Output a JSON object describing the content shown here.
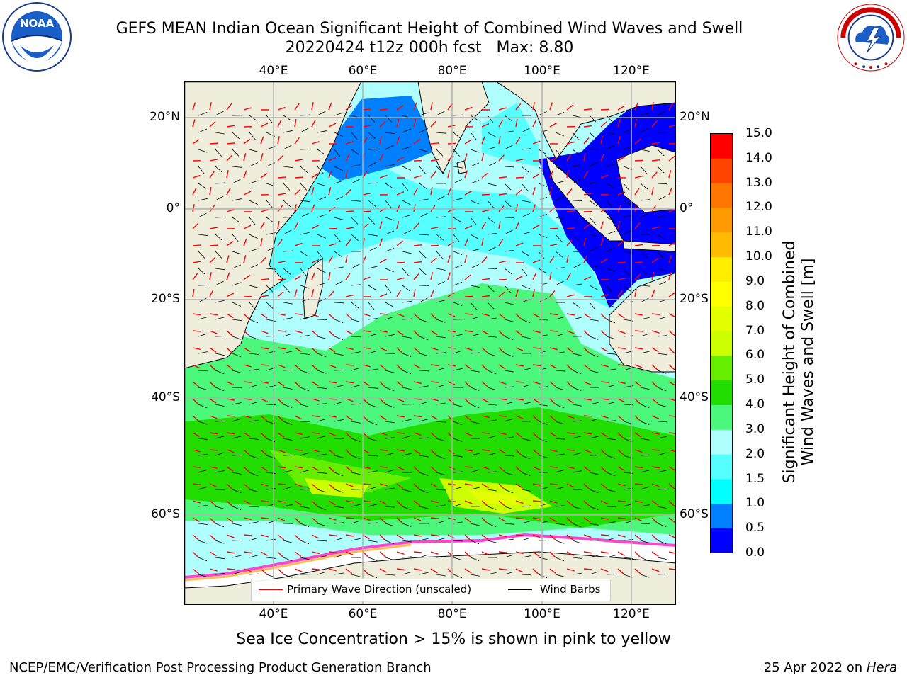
{
  "header": {
    "title_line1": "GEFS MEAN Indian Ocean Significant Height of Combined Wind Waves and Swell",
    "title_line2": "20220424 t12z 000h fcst   Max: 8.80"
  },
  "logos": {
    "left": {
      "name": "noaa-logo",
      "text": "NOAA",
      "ring_text": "NATIONAL OCEANIC AND ATMOSPHERIC ADMINISTRATION • U.S. DEPARTMENT OF COMMERCE"
    },
    "right": {
      "name": "nws-logo",
      "ring_text": "NATIONAL WEATHER SERVICE"
    }
  },
  "map": {
    "lon_ticks": [
      "40°E",
      "60°E",
      "80°E",
      "100°E",
      "120°E"
    ],
    "lat_ticks": [
      "20°N",
      "0°",
      "20°S",
      "40°S",
      "60°S"
    ],
    "lat_ticks_right": [
      "20°N",
      "0°",
      "20°S",
      "40°S",
      "60°S"
    ],
    "lon_range": [
      20,
      130
    ],
    "lat_range": [
      -80,
      27
    ],
    "grid": true,
    "colors": {
      "land": "#efeedc",
      "ocean_1_5": "#7ffeff",
      "ocean_2": "#b0fefe",
      "ocean_3": "#4cfa7c",
      "ocean_4": "#22dd00",
      "ice": "#ffffff",
      "ice_edge": "#ff44cc"
    }
  },
  "legend": {
    "items": [
      {
        "label": "Primary Wave Direction (unscaled)",
        "color": "#ff0000"
      },
      {
        "label": "Wind Barbs",
        "color": "#000000"
      }
    ],
    "placement": "bottom-center"
  },
  "colorbar": {
    "label_line1": "Significant Height of Combined",
    "label_line2": "Wind Waves and Swell [m]",
    "ticks": [
      "15.0",
      "14.0",
      "13.0",
      "12.0",
      "11.0",
      "10.0",
      "9.0",
      "8.0",
      "7.0",
      "6.0",
      "5.0",
      "4.0",
      "3.0",
      "2.0",
      "1.5",
      "1.0",
      "0.5",
      "0.0"
    ],
    "bins": [
      {
        "from": 0.0,
        "to": 0.5,
        "color": "#0000ff"
      },
      {
        "from": 0.5,
        "to": 1.0,
        "color": "#0080ff"
      },
      {
        "from": 1.0,
        "to": 1.5,
        "color": "#00ffff"
      },
      {
        "from": 1.5,
        "to": 2.0,
        "color": "#55ffff"
      },
      {
        "from": 2.0,
        "to": 3.0,
        "color": "#b0ffff"
      },
      {
        "from": 3.0,
        "to": 4.0,
        "color": "#4cf87c"
      },
      {
        "from": 4.0,
        "to": 5.0,
        "color": "#22dd00"
      },
      {
        "from": 5.0,
        "to": 6.0,
        "color": "#66ee00"
      },
      {
        "from": 6.0,
        "to": 7.0,
        "color": "#ccff00"
      },
      {
        "from": 7.0,
        "to": 8.0,
        "color": "#e4ff00"
      },
      {
        "from": 8.0,
        "to": 9.0,
        "color": "#ffff00"
      },
      {
        "from": 9.0,
        "to": 10.0,
        "color": "#ffee00"
      },
      {
        "from": 10.0,
        "to": 11.0,
        "color": "#ffbb00"
      },
      {
        "from": 11.0,
        "to": 12.0,
        "color": "#ff9900"
      },
      {
        "from": 12.0,
        "to": 13.0,
        "color": "#ff7700"
      },
      {
        "from": 13.0,
        "to": 14.0,
        "color": "#ff4400"
      },
      {
        "from": 14.0,
        "to": 15.0,
        "color": "#ff0000"
      }
    ]
  },
  "caption": "Sea Ice Concentration > 15% is shown in pink to yellow",
  "footer": {
    "left": "NCEP/EMC/Verification Post Processing Product Generation Branch",
    "right_date": "25 Apr 2022 on ",
    "right_host": "Hera"
  }
}
